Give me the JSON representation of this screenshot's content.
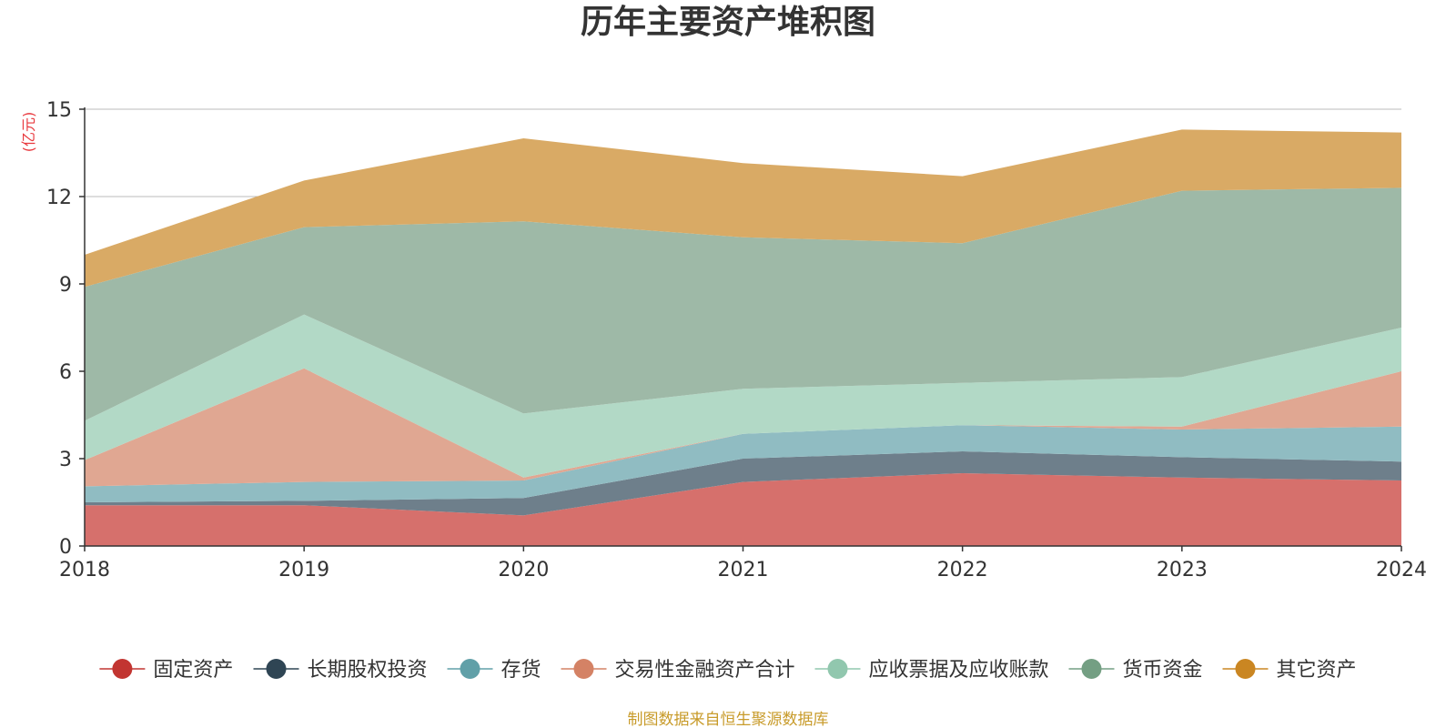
{
  "chart_data": {
    "type": "area",
    "stacked": true,
    "title": "历年主要资产堆积图",
    "unit_label": "(亿元)",
    "x": [
      "2018",
      "2019",
      "2020",
      "2021",
      "2022",
      "2023",
      "2024"
    ],
    "ylim": [
      0,
      15
    ],
    "yticks": [
      "0",
      "3",
      "6",
      "9",
      "12",
      "15"
    ],
    "grid": true,
    "legend_position": "bottom",
    "series": [
      {
        "name": "固定资产",
        "color": "#c23531",
        "fill": "#d6706c",
        "values": [
          1.4,
          1.4,
          1.05,
          2.2,
          2.5,
          2.35,
          2.25
        ]
      },
      {
        "name": "长期股权投资",
        "color": "#2f4554",
        "fill": "#6e7f8b",
        "values": [
          0.1,
          0.15,
          0.6,
          0.8,
          0.75,
          0.7,
          0.65
        ]
      },
      {
        "name": "存货",
        "color": "#61a0a8",
        "fill": "#90bcc2",
        "values": [
          0.55,
          0.65,
          0.6,
          0.85,
          0.9,
          0.95,
          1.2
        ]
      },
      {
        "name": "交易性金融资产合计",
        "color": "#d48265",
        "fill": "#e0a792",
        "values": [
          0.9,
          3.9,
          0.1,
          0.0,
          0.0,
          0.1,
          1.9
        ]
      },
      {
        "name": "应收票据及应收账款",
        "color": "#91c7ae",
        "fill": "#b2d9c6",
        "values": [
          1.35,
          1.85,
          2.2,
          1.55,
          1.45,
          1.7,
          1.5
        ]
      },
      {
        "name": "货币资金",
        "color": "#749f83",
        "fill": "#9eb9a7",
        "values": [
          4.6,
          3.0,
          6.6,
          5.2,
          4.8,
          6.4,
          4.8
        ]
      },
      {
        "name": "其它资产",
        "color": "#ca8622",
        "fill": "#d9aa65",
        "values": [
          1.1,
          1.6,
          2.85,
          2.55,
          2.3,
          2.1,
          1.9
        ]
      }
    ]
  },
  "footer": {
    "source": "制图数据来自恒生聚源数据库"
  }
}
